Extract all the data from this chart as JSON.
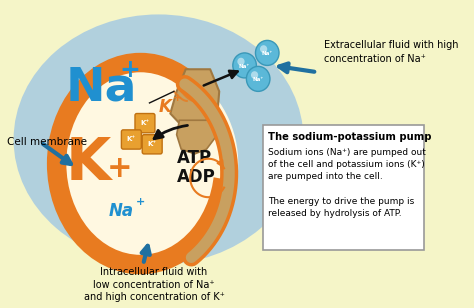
{
  "bg_color": "#F5F5C8",
  "extracell_blob_color": "#AACCE0",
  "cell_fill": "#FFF8E1",
  "cell_stroke": "#E87B20",
  "na_color": "#2090D0",
  "k_color": "#E87B20",
  "pump_color": "#C8A060",
  "pump_dark": "#A07840",
  "atp_adp_color": "#111111",
  "arrow_black": "#111111",
  "arrow_blue": "#2070A0",
  "box_bg": "#FFFFFF",
  "box_border": "#999999",
  "box_title": "The sodium-potassium pump",
  "box_line1": "Sodium ions (Na⁺) are pumped out",
  "box_line2": "of the cell and potassium ions (K⁺)",
  "box_line3": "are pumped into the cell.",
  "box_line4": "The energy to drive the pump is",
  "box_line5": "released by hydrolysis of ATP.",
  "label_cell_membrane": "Cell membrane",
  "label_extracell": "Extracellular fluid with high\nconcentration of Na⁺",
  "label_intracell": "Intracellular fluid with\nlow concentration of Na⁺\nand high concentration of K⁺",
  "na_sphere_color": "#5BB8D8",
  "na_sphere_edge": "#3A98B8",
  "k_sq_color": "#E8A030",
  "k_sq_edge": "#C07010"
}
